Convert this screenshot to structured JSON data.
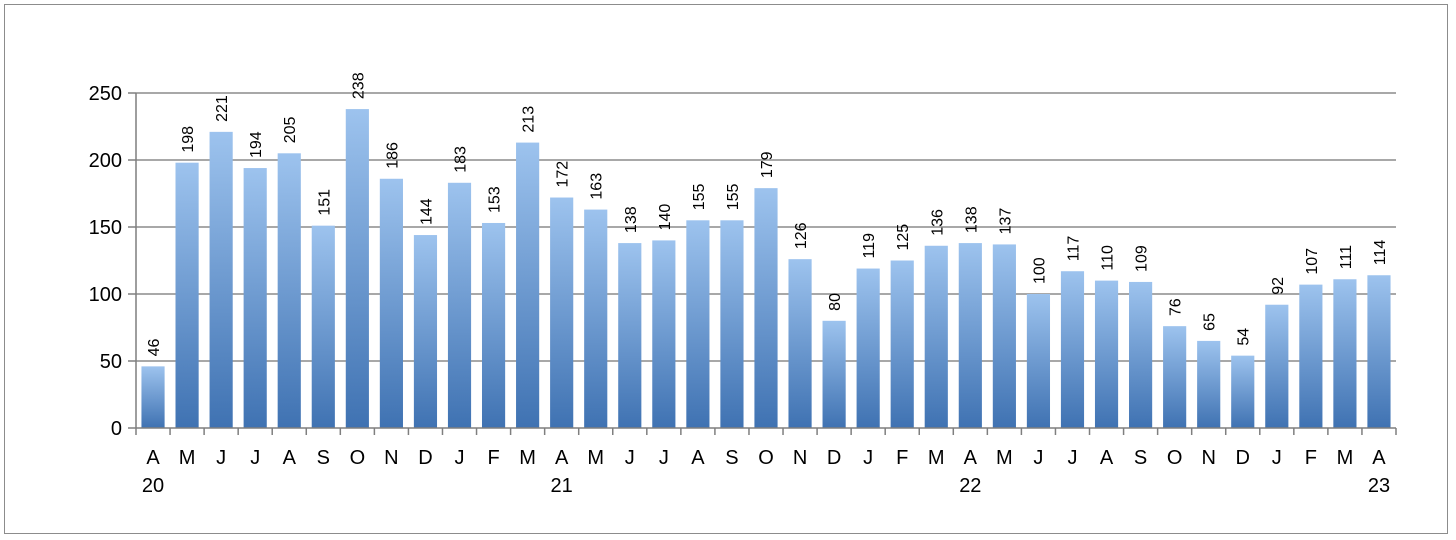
{
  "chart_data": {
    "type": "bar",
    "categories": [
      "A",
      "M",
      "J",
      "J",
      "A",
      "S",
      "O",
      "N",
      "D",
      "J",
      "F",
      "M",
      "A",
      "M",
      "J",
      "J",
      "A",
      "S",
      "O",
      "N",
      "D",
      "J",
      "F",
      "M",
      "A",
      "M",
      "J",
      "J",
      "A",
      "S",
      "O",
      "N",
      "D",
      "J",
      "F",
      "M",
      "A"
    ],
    "year_labels": [
      {
        "index": 0,
        "label": "20"
      },
      {
        "index": 12,
        "label": "21"
      },
      {
        "index": 24,
        "label": "22"
      },
      {
        "index": 36,
        "label": "23"
      }
    ],
    "values": [
      46,
      198,
      221,
      194,
      205,
      151,
      238,
      186,
      144,
      183,
      153,
      213,
      172,
      163,
      138,
      140,
      155,
      155,
      179,
      126,
      80,
      119,
      125,
      136,
      138,
      137,
      100,
      117,
      110,
      109,
      76,
      65,
      54,
      92,
      107,
      111,
      114
    ],
    "yticks": [
      0,
      50,
      100,
      150,
      200,
      250
    ],
    "ylim": [
      0,
      250
    ],
    "grid": true,
    "legend": "none",
    "colors": {
      "bar_top": "#9dc3ee",
      "bar_bottom": "#3f72b2",
      "grid": "#8c8c8c",
      "axis": "#7f7f7f"
    }
  }
}
